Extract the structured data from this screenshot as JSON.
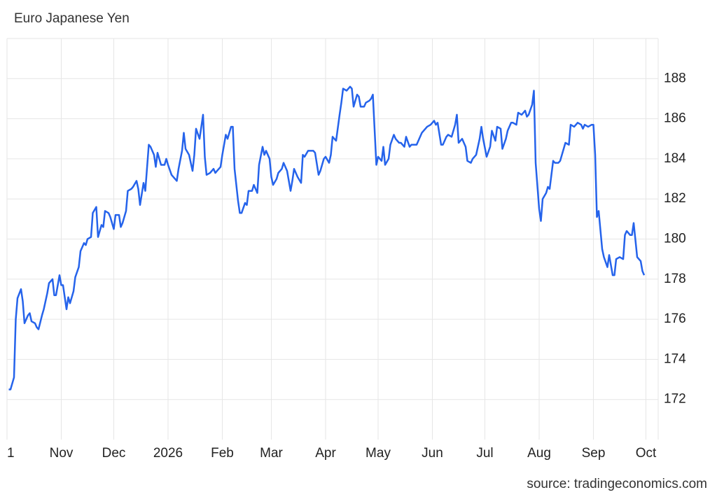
{
  "chart_data": {
    "type": "line",
    "title": "Euro Japanese Yen",
    "source": "source: tradingeconomics.com",
    "color": "#2563eb",
    "grid": true,
    "x": [
      1,
      2,
      4,
      5,
      6,
      8,
      9,
      10,
      12,
      13,
      14,
      16,
      17,
      18,
      20,
      21,
      23,
      24,
      26,
      27,
      28,
      30,
      31,
      32,
      34,
      35,
      36,
      38,
      39,
      41,
      42,
      44,
      45,
      46,
      48,
      49,
      51,
      52,
      54,
      55,
      56,
      58,
      59,
      61,
      62,
      64,
      65,
      66,
      68,
      69,
      71,
      72,
      74,
      75,
      76,
      78,
      79,
      81,
      82,
      84,
      85,
      86,
      88,
      90,
      91,
      92,
      94,
      95,
      97,
      98,
      100,
      101,
      102,
      104,
      106,
      107,
      108,
      110,
      112,
      113,
      114,
      116,
      118,
      119,
      120,
      122,
      123,
      125,
      126,
      128,
      129,
      130,
      132,
      133,
      134,
      136,
      137,
      138,
      140,
      141,
      143,
      144,
      146,
      147,
      148,
      150,
      151,
      152,
      154,
      155,
      157,
      158,
      160,
      162,
      163,
      164,
      166,
      168,
      169,
      170,
      172,
      173,
      175,
      176,
      178,
      179,
      181,
      182,
      184,
      185,
      186,
      188,
      190,
      191,
      192,
      194,
      196,
      197,
      198,
      200,
      201,
      202,
      204,
      205,
      207,
      208,
      209,
      211,
      212,
      214,
      215,
      216,
      218,
      219,
      221,
      222,
      224,
      225,
      227,
      228,
      230,
      231,
      232,
      234,
      236,
      237,
      239,
      240,
      242,
      244,
      245,
      246,
      248,
      249,
      251,
      252,
      254,
      256,
      257,
      258,
      260,
      262,
      263,
      265,
      266,
      268,
      270,
      271,
      272,
      274,
      276,
      277,
      279,
      280,
      282,
      283,
      285,
      286,
      288,
      289,
      291,
      292,
      294,
      296,
      297,
      298,
      300,
      301,
      302,
      304,
      305,
      306,
      308,
      309,
      310,
      312,
      313,
      315,
      316,
      318,
      319,
      321,
      322,
      324,
      325,
      326,
      328,
      329,
      330,
      332,
      334,
      335,
      336,
      337,
      338,
      340,
      341,
      343,
      344,
      346,
      347,
      348,
      350,
      352,
      353,
      354,
      356,
      357,
      358,
      360,
      362,
      363,
      364
    ],
    "values": [
      172.5,
      172.5,
      173.1,
      176.0,
      177.05,
      177.5,
      176.9,
      175.8,
      176.2,
      176.3,
      175.9,
      175.8,
      175.6,
      175.5,
      176.2,
      176.5,
      177.3,
      177.8,
      178.0,
      177.2,
      177.2,
      178.2,
      177.7,
      177.7,
      176.5,
      177.1,
      176.8,
      177.4,
      178.1,
      178.6,
      179.4,
      179.8,
      179.7,
      180.0,
      180.1,
      181.3,
      181.6,
      180.1,
      180.7,
      180.6,
      181.4,
      181.3,
      181.1,
      180.5,
      181.2,
      181.2,
      180.6,
      180.8,
      181.4,
      182.4,
      182.5,
      182.6,
      182.9,
      182.5,
      181.7,
      182.8,
      182.4,
      184.7,
      184.6,
      184.2,
      183.6,
      184.3,
      183.7,
      183.7,
      184.0,
      183.7,
      183.2,
      183.1,
      182.9,
      183.5,
      184.4,
      185.3,
      184.5,
      184.2,
      183.4,
      184.2,
      185.5,
      185.0,
      186.2,
      184.1,
      183.2,
      183.3,
      183.5,
      183.3,
      183.4,
      183.6,
      184.2,
      185.2,
      185.0,
      185.6,
      185.6,
      183.5,
      181.9,
      181.3,
      181.3,
      181.8,
      181.7,
      182.4,
      182.4,
      182.7,
      182.3,
      183.7,
      184.6,
      184.2,
      184.4,
      184.0,
      183.1,
      182.7,
      183.0,
      183.3,
      183.5,
      183.8,
      183.4,
      182.4,
      182.9,
      183.5,
      183.1,
      182.8,
      184.2,
      184.1,
      184.4,
      184.4,
      184.4,
      184.3,
      183.2,
      183.4,
      184.0,
      184.1,
      183.8,
      184.2,
      185.1,
      184.9,
      186.2,
      186.8,
      187.5,
      187.4,
      187.6,
      187.5,
      186.6,
      187.2,
      187.1,
      186.6,
      186.6,
      186.8,
      186.9,
      187.0,
      187.2,
      183.7,
      184.1,
      183.9,
      184.6,
      183.7,
      184.0,
      184.7,
      185.2,
      185.0,
      184.8,
      184.8,
      184.6,
      185.1,
      184.6,
      184.7,
      184.7,
      184.7,
      185.1,
      185.3,
      185.5,
      185.6,
      185.7,
      185.9,
      185.7,
      185.8,
      184.7,
      184.7,
      185.1,
      185.2,
      185.1,
      185.7,
      186.2,
      184.8,
      185.0,
      184.6,
      183.9,
      183.8,
      184.0,
      184.2,
      185.0,
      185.6,
      185.0,
      184.1,
      184.6,
      185.4,
      184.9,
      185.6,
      185.5,
      184.5,
      185.0,
      185.4,
      185.8,
      185.8,
      185.7,
      186.3,
      186.2,
      186.4,
      186.1,
      186.2,
      186.7,
      187.4,
      183.8,
      181.5,
      180.9,
      182.0,
      182.3,
      182.6,
      182.5,
      183.9,
      183.8,
      183.8,
      183.9,
      184.5,
      184.8,
      184.7,
      185.7,
      185.6,
      185.7,
      185.8,
      185.7,
      185.5,
      185.7,
      185.6,
      185.7,
      185.7,
      184.2,
      181.1,
      181.4,
      179.5,
      179.1,
      178.6,
      179.2,
      178.2,
      178.2,
      179.0,
      179.1,
      179.0,
      180.2,
      180.4,
      180.2,
      180.2,
      180.8,
      179.1,
      178.9,
      178.4,
      178.2
    ],
    "xlim": [
      0,
      372
    ],
    "xticks": [
      {
        "value": 0,
        "label": "1"
      },
      {
        "value": 31,
        "label": "Nov"
      },
      {
        "value": 61,
        "label": "Dec"
      },
      {
        "value": 92,
        "label": "2026"
      },
      {
        "value": 123,
        "label": "Feb"
      },
      {
        "value": 151,
        "label": "Mar"
      },
      {
        "value": 182,
        "label": "Apr"
      },
      {
        "value": 212,
        "label": "May"
      },
      {
        "value": 243,
        "label": "Jun"
      },
      {
        "value": 273,
        "label": "Jul"
      },
      {
        "value": 304,
        "label": "Aug"
      },
      {
        "value": 335,
        "label": "Sep"
      },
      {
        "value": 365,
        "label": "Oct"
      }
    ],
    "ylim": [
      170,
      190
    ],
    "yticks": [
      172,
      174,
      176,
      178,
      180,
      182,
      184,
      186,
      188
    ]
  }
}
